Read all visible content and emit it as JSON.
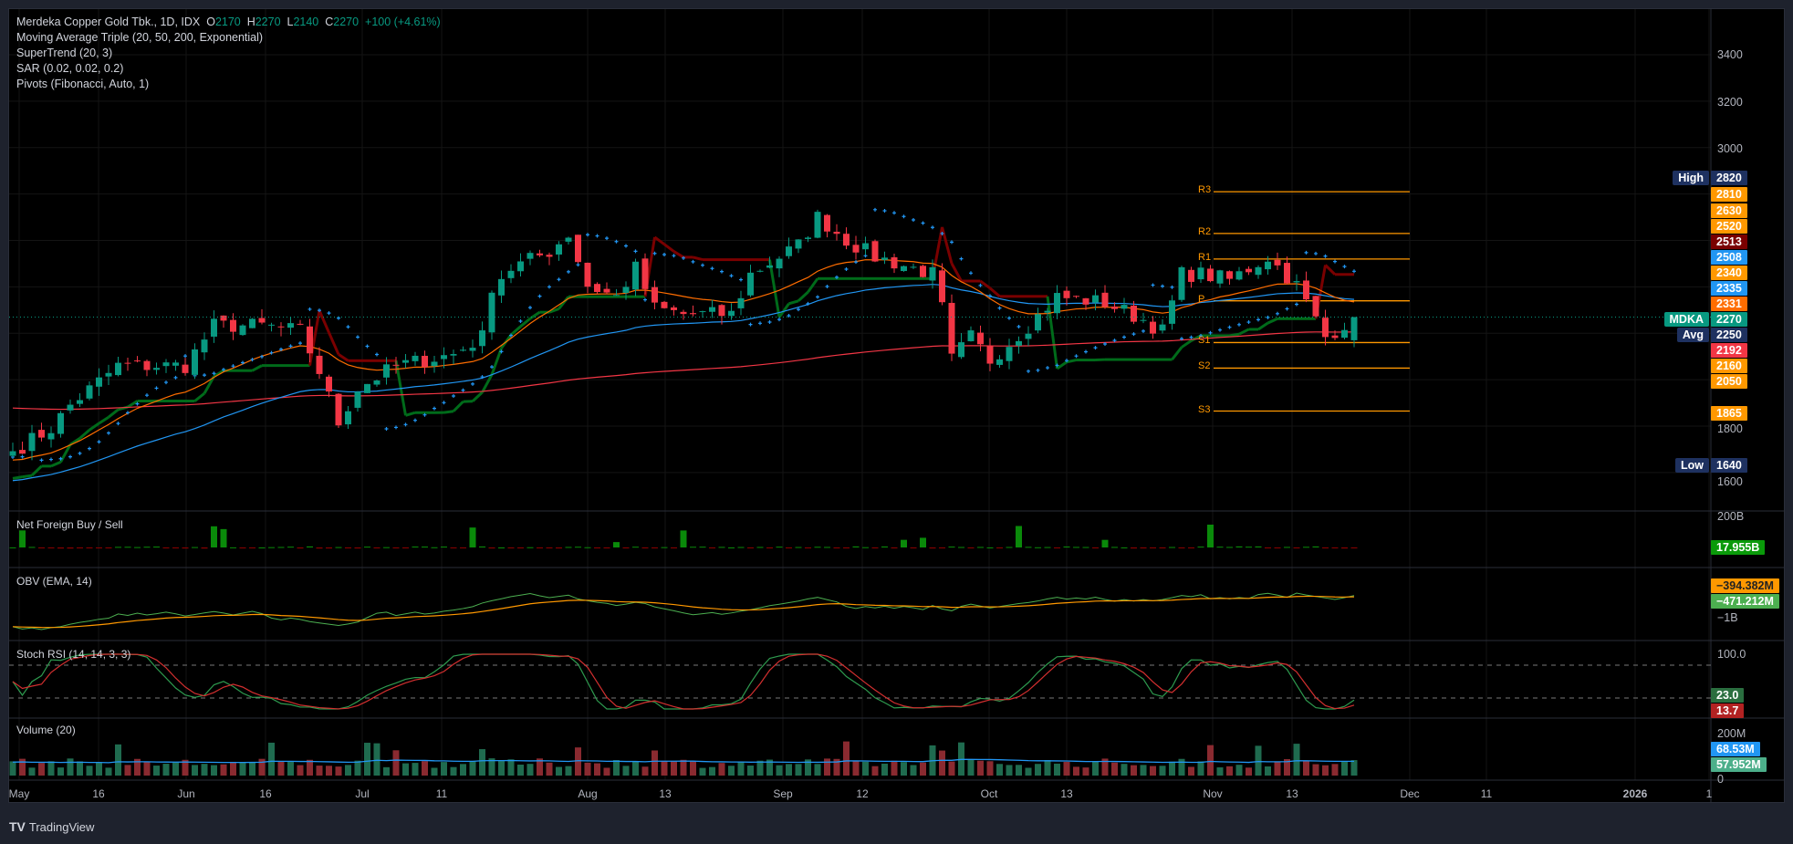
{
  "legend": {
    "symbol_line": "Merdeka Copper Gold Tbk., 1D, IDX",
    "o_label": "O",
    "o_value": "2170",
    "h_label": "H",
    "h_value": "2270",
    "l_label": "L",
    "l_value": "2140",
    "c_label": "C",
    "c_value": "2270",
    "change": "+100 (+4.61%)",
    "indicators": [
      "Moving Average Triple (20, 50, 200, Exponential)",
      "SuperTrend (20, 3)",
      "SAR (0.02, 0.02, 0.2)",
      "Pivots (Fibonacci, Auto, 1)"
    ]
  },
  "panes": {
    "net_foreign": "Net Foreign Buy / Sell",
    "obv": "OBV (EMA, 14)",
    "stoch": "Stoch RSI (14, 14, 3, 3)",
    "volume": "Volume (20)"
  },
  "price_axis": [
    "3400",
    "3200",
    "3000",
    "1800",
    "1600"
  ],
  "badges": [
    {
      "tag": "High",
      "value": "2820",
      "color": "#1e3160"
    },
    {
      "value": "2810",
      "color": "#ff9800"
    },
    {
      "value": "2630",
      "color": "#ff9800"
    },
    {
      "value": "2520",
      "color": "#ff9800"
    },
    {
      "value": "2513",
      "color": "#7a0000"
    },
    {
      "value": "2508",
      "color": "#2196f3"
    },
    {
      "value": "2340",
      "color": "#ff9800"
    },
    {
      "value": "2335",
      "color": "#2196f3"
    },
    {
      "value": "2331",
      "color": "#ff6d00"
    },
    {
      "tag": "MDKA",
      "value": "2270",
      "color": "#089981"
    },
    {
      "tag": "Avg",
      "value": "2250",
      "color": "#1e3160"
    },
    {
      "value": "2192",
      "color": "#f23645"
    },
    {
      "value": "2160",
      "color": "#ff9800"
    },
    {
      "value": "2050",
      "color": "#ff9800"
    },
    {
      "value": "1865",
      "color": "#ff9800"
    },
    {
      "tag": "Low",
      "value": "1640",
      "color": "#1e3160"
    }
  ],
  "lower_axis": {
    "net_foreign_tick": "200B",
    "net_foreign_badge": "17.955B",
    "obv_badge1": "−394.382M",
    "obv_badge2": "−471.212M",
    "obv_tick": "−1B",
    "stoch_tick": "100.0",
    "stoch_k": "23.0",
    "stoch_d": "13.7",
    "vol_tick": "200M",
    "vol_ma": "68.53M",
    "vol_value": "57.952M",
    "vol_zero": "0"
  },
  "pivots": [
    {
      "label": "R3",
      "value": 2810
    },
    {
      "label": "R2",
      "value": 2630
    },
    {
      "label": "R1",
      "value": 2520
    },
    {
      "label": "P",
      "value": 2340
    },
    {
      "label": "S1",
      "value": 2160
    },
    {
      "label": "S2",
      "value": 2050
    },
    {
      "label": "S3",
      "value": 1865
    }
  ],
  "time_axis": [
    "May",
    "16",
    "Jun",
    "16",
    "Jul",
    "11",
    "Aug",
    "13",
    "Sep",
    "12",
    "Oct",
    "13",
    "Nov",
    "13",
    "Dec",
    "11",
    "2026",
    "1"
  ],
  "footer": {
    "brand": "TradingView"
  },
  "colors": {
    "up": "#089981",
    "down": "#f23645",
    "ema20": "#ff6d00",
    "ema50": "#2196f3",
    "ema200": "#f23645",
    "sar": "#2196f3",
    "pivot": "#ff9800"
  },
  "chart_data": {
    "type": "candlestick",
    "symbol": "MDKA",
    "interval": "1D",
    "close_keypoints": [
      [
        0,
        1692
      ],
      [
        4,
        1790
      ],
      [
        6,
        1890
      ],
      [
        11,
        2060
      ],
      [
        14,
        2060
      ],
      [
        18,
        2060
      ],
      [
        21,
        2233
      ],
      [
        26,
        2233
      ],
      [
        30,
        2209
      ],
      [
        32,
        2036
      ],
      [
        34,
        1815
      ],
      [
        36,
        1962
      ],
      [
        40,
        2060
      ],
      [
        46,
        2110
      ],
      [
        49,
        2184
      ],
      [
        50,
        2406
      ],
      [
        52,
        2480
      ],
      [
        56,
        2553
      ],
      [
        58,
        2627
      ],
      [
        60,
        2406
      ],
      [
        63,
        2357
      ],
      [
        65,
        2480
      ],
      [
        67,
        2307
      ],
      [
        70,
        2282
      ],
      [
        75,
        2282
      ],
      [
        77,
        2455
      ],
      [
        82,
        2578
      ],
      [
        84,
        2701
      ],
      [
        87,
        2602
      ],
      [
        90,
        2529
      ],
      [
        94,
        2480
      ],
      [
        96,
        2455
      ],
      [
        97,
        2307
      ],
      [
        98,
        2085
      ],
      [
        100,
        2184
      ],
      [
        102,
        2085
      ],
      [
        106,
        2233
      ],
      [
        109,
        2357
      ],
      [
        114,
        2332
      ],
      [
        118,
        2258
      ],
      [
        120,
        2209
      ],
      [
        122,
        2455
      ],
      [
        124,
        2455
      ],
      [
        127,
        2430
      ],
      [
        131,
        2529
      ],
      [
        134,
        2406
      ],
      [
        136,
        2258
      ],
      [
        137,
        2184
      ],
      [
        140,
        2270
      ]
    ],
    "last_bar": {
      "open": 2170,
      "high": 2270,
      "low": 2140,
      "close": 2270
    },
    "high": 2820,
    "low": 1640,
    "avg": 2250,
    "ylim": [
      1560,
      3450
    ]
  }
}
